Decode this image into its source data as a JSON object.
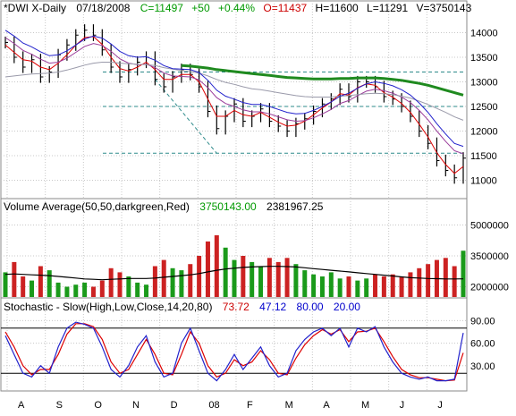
{
  "colors": {
    "background": "#ffffff",
    "frame": "#8a8a8a",
    "grid": "#c8c8c8",
    "price_bars": "#000000",
    "ma_red": "#dd0000",
    "ma_blue": "#2222cc",
    "ma_purple": "#9a3c9a",
    "ma_gray": "#9a9aaa",
    "ma_green": "#1f8a1f",
    "trend_lines": "#2e8b8b",
    "volume_up": "#1a9a1a",
    "volume_down": "#cc2222",
    "volume_avg": "#000000",
    "stoch_k": "#2222cc",
    "stoch_d": "#dd0000",
    "stoch_ref": "#000000",
    "label_green": "#009900",
    "label_red": "#cc0000",
    "label_blue": "#0000cc"
  },
  "header": {
    "symbol": "*DWI X-Daily",
    "date": "07/18/2008",
    "close": "C=11497",
    "change": "+50",
    "change_pct": "+0.44%",
    "open": "O=11437",
    "high": "H=11600",
    "low": "L=11291",
    "volume": "V=3750143"
  },
  "volume_legend": {
    "label": "Volume Average(50,50,darkgreen,Red)",
    "value1": "3750143.00",
    "value2": "2381967.25"
  },
  "stoch_legend": {
    "label": "Stochastic - Slow(High,Low,Close,14,20,80)",
    "k": "73.72",
    "d": "47.12",
    "upper": "80.00",
    "lower": "20.00"
  },
  "chart_data": [
    {
      "type": "line",
      "panel": "price",
      "ylim": [
        10700,
        14300
      ],
      "y_ticks": [
        "14000",
        "13500",
        "13000",
        "12500",
        "12000",
        "11500",
        "11000"
      ],
      "x_ticks": [
        "A",
        "S",
        "O",
        "N",
        "D",
        "08",
        "F",
        "M",
        "A",
        "M",
        "J",
        "J"
      ],
      "horizontal_levels": [
        13200,
        12500,
        11550
      ],
      "series": [
        {
          "role": "close",
          "values": [
            13800,
            13500,
            13300,
            13450,
            13100,
            13200,
            13550,
            13750,
            13950,
            14050,
            13950,
            13650,
            13300,
            13100,
            13250,
            13400,
            13500,
            13050,
            12900,
            13100,
            13250,
            13150,
            12900,
            12400,
            12050,
            12300,
            12550,
            12200,
            12300,
            12450,
            12200,
            12100,
            12000,
            12150,
            12250,
            12400,
            12550,
            12650,
            12850,
            12700,
            13000,
            13000,
            12900,
            12700,
            12650,
            12500,
            12300,
            12000,
            11750,
            11400,
            11200,
            11050,
            11450
          ]
        },
        {
          "role": "ma_short",
          "values": [
            13750,
            13600,
            13450,
            13420,
            13300,
            13250,
            13380,
            13550,
            13750,
            13900,
            13920,
            13760,
            13500,
            13270,
            13220,
            13300,
            13400,
            13250,
            13050,
            13050,
            13150,
            13150,
            13000,
            12650,
            12300,
            12300,
            12420,
            12330,
            12300,
            12380,
            12280,
            12180,
            12100,
            12120,
            12200,
            12330,
            12470,
            12590,
            12760,
            12730,
            12880,
            12960,
            12930,
            12780,
            12690,
            12560,
            12380,
            12140,
            11880,
            11560,
            11320,
            11140,
            11280
          ]
        },
        {
          "role": "ma_mid",
          "values": [
            13900,
            13780,
            13640,
            13560,
            13460,
            13380,
            13400,
            13480,
            13600,
            13720,
            13780,
            13740,
            13620,
            13470,
            13380,
            13350,
            13360,
            13290,
            13180,
            13120,
            13110,
            13100,
            13040,
            12880,
            12680,
            12560,
            12500,
            12430,
            12390,
            12390,
            12350,
            12290,
            12230,
            12200,
            12210,
            12270,
            12350,
            12440,
            12560,
            12620,
            12720,
            12810,
            12850,
            12820,
            12770,
            12690,
            12580,
            12420,
            12230,
            12000,
            11790,
            11600,
            11540
          ]
        },
        {
          "role": "ma_long_gray",
          "values": [
            13100,
            13120,
            13140,
            13160,
            13170,
            13180,
            13200,
            13240,
            13290,
            13340,
            13380,
            13400,
            13400,
            13380,
            13370,
            13360,
            13350,
            13330,
            13290,
            13260,
            13230,
            13210,
            13180,
            13120,
            13050,
            12990,
            12950,
            12900,
            12860,
            12840,
            12810,
            12780,
            12750,
            12720,
            12700,
            12690,
            12690,
            12690,
            12710,
            12720,
            12740,
            12760,
            12770,
            12760,
            12740,
            12710,
            12670,
            12610,
            12540,
            12460,
            12380,
            12290,
            12220
          ]
        },
        {
          "role": "ma_long_green",
          "values": [
            null,
            null,
            null,
            null,
            null,
            null,
            null,
            null,
            null,
            null,
            null,
            null,
            null,
            null,
            null,
            null,
            null,
            null,
            null,
            null,
            13330,
            13320,
            13300,
            13280,
            13250,
            13230,
            13210,
            13190,
            13170,
            13150,
            13130,
            13110,
            13090,
            13080,
            13070,
            13060,
            13060,
            13060,
            13070,
            13070,
            13080,
            13080,
            13080,
            13070,
            13050,
            13030,
            13000,
            12970,
            12930,
            12880,
            12830,
            12780,
            12730
          ]
        }
      ]
    },
    {
      "type": "bar",
      "panel": "volume",
      "ylim": [
        1500000,
        5500000
      ],
      "y_ticks": [
        "5000000",
        "3500000",
        "2000000"
      ],
      "series": [
        {
          "role": "volume",
          "values": [
            2700000,
            3200000,
            2500000,
            2300000,
            3000000,
            2800000,
            2200000,
            2000000,
            2100000,
            2200000,
            2000000,
            2300000,
            2900000,
            2700000,
            2500000,
            2200000,
            2100000,
            3000000,
            3300000,
            2900000,
            2800000,
            3100000,
            3500000,
            4200000,
            4500000,
            3900000,
            3300000,
            3500000,
            3200000,
            3000000,
            3400000,
            3200000,
            3400000,
            3100000,
            2800000,
            2600000,
            2500000,
            2700000,
            2400000,
            2500000,
            2300000,
            2400000,
            2600000,
            2500000,
            2600000,
            2500000,
            2700000,
            2900000,
            3100000,
            3300000,
            3400000,
            3000000,
            3750143
          ]
        },
        {
          "role": "volume_average",
          "values": [
            2600000,
            2620000,
            2600000,
            2580000,
            2560000,
            2540000,
            2500000,
            2460000,
            2420000,
            2380000,
            2360000,
            2340000,
            2360000,
            2380000,
            2400000,
            2400000,
            2400000,
            2420000,
            2460000,
            2500000,
            2540000,
            2580000,
            2640000,
            2720000,
            2800000,
            2860000,
            2900000,
            2940000,
            2960000,
            2980000,
            2990000,
            2990000,
            2980000,
            2960000,
            2920000,
            2880000,
            2840000,
            2800000,
            2760000,
            2720000,
            2680000,
            2640000,
            2600000,
            2560000,
            2520000,
            2480000,
            2440000,
            2420000,
            2400000,
            2390000,
            2380000,
            2380000,
            2381967
          ]
        }
      ]
    },
    {
      "type": "line",
      "panel": "stochastic",
      "ylim": [
        0,
        100
      ],
      "y_ticks": [
        "90.00",
        "60.00",
        "30.00"
      ],
      "reference_levels": [
        80,
        20
      ],
      "series": [
        {
          "role": "k",
          "values": [
            70,
            45,
            20,
            15,
            30,
            20,
            55,
            80,
            88,
            85,
            80,
            55,
            25,
            15,
            30,
            55,
            70,
            35,
            15,
            20,
            60,
            80,
            50,
            20,
            10,
            25,
            45,
            25,
            40,
            55,
            30,
            15,
            20,
            50,
            65,
            75,
            80,
            70,
            80,
            55,
            80,
            75,
            82,
            55,
            35,
            20,
            15,
            12,
            15,
            10,
            10,
            12,
            73.72
          ]
        },
        {
          "role": "d",
          "values": [
            75,
            55,
            30,
            18,
            25,
            25,
            45,
            72,
            86,
            86,
            82,
            65,
            35,
            20,
            25,
            45,
            65,
            45,
            20,
            18,
            45,
            75,
            60,
            30,
            15,
            20,
            38,
            30,
            35,
            50,
            38,
            20,
            18,
            40,
            58,
            70,
            78,
            72,
            78,
            62,
            75,
            76,
            80,
            62,
            42,
            25,
            18,
            14,
            14,
            12,
            10,
            11,
            47.12
          ]
        }
      ]
    }
  ]
}
